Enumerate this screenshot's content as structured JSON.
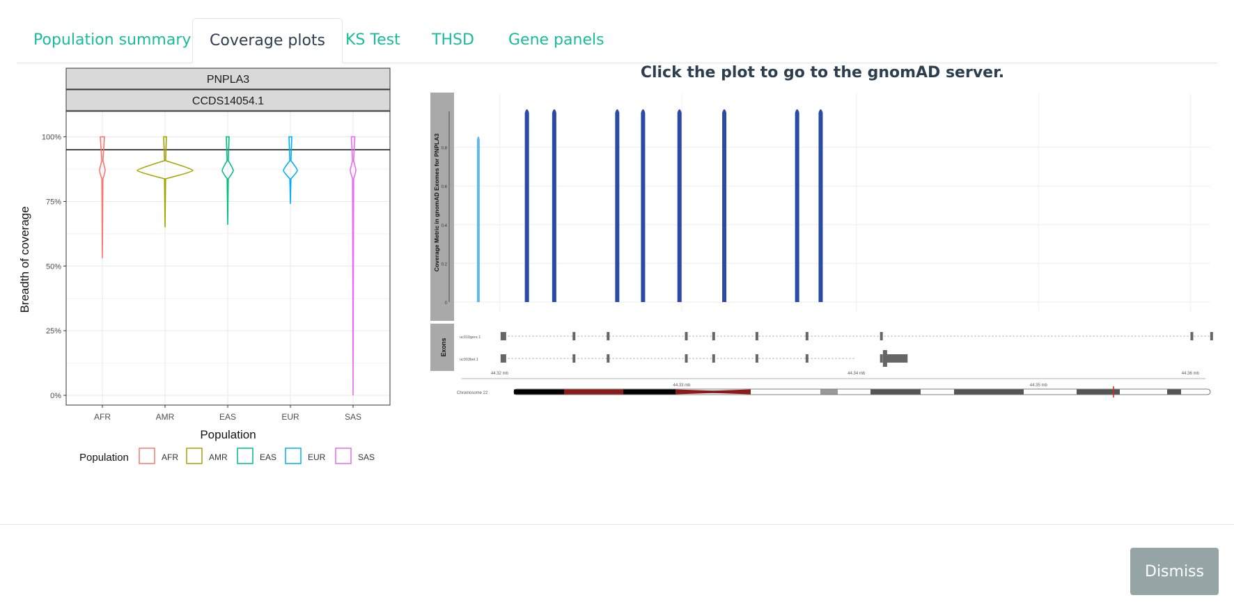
{
  "tabs": [
    {
      "label": "Population summary"
    },
    {
      "label": "Coverage plots"
    },
    {
      "label": "KS Test"
    },
    {
      "label": "THSD"
    },
    {
      "label": "Gene panels"
    }
  ],
  "active_tab": "Coverage plots",
  "right_title": "Click the plot to go to the gnomAD server.",
  "dismiss_label": "Dismiss",
  "chart_data": [
    {
      "type": "violin",
      "facet_labels": [
        "PNPLA3",
        "CCDS14054.1"
      ],
      "xlabel": "Population",
      "ylabel": "Breadth of coverage",
      "categories": [
        "AFR",
        "AMR",
        "EAS",
        "EUR",
        "SAS"
      ],
      "ytick_labels": [
        "0%",
        "25%",
        "50%",
        "75%",
        "100%"
      ],
      "ylim": [
        0,
        1.05
      ],
      "hline": 0.95,
      "grid": true,
      "legend": {
        "title": "Population",
        "position": "bottom",
        "entries": [
          "AFR",
          "AMR",
          "EAS",
          "EUR",
          "SAS"
        ]
      },
      "series_colors": {
        "AFR": "#F8766D",
        "AMR": "#A3A500",
        "EAS": "#00BF7D",
        "EUR": "#00B0F6",
        "SAS": "#E76BF3"
      },
      "distributions": [
        {
          "category": "AFR",
          "min": 0.53,
          "max": 1.0,
          "mode": 0.87
        },
        {
          "category": "AMR",
          "min": 0.65,
          "max": 1.0,
          "mode": 0.87
        },
        {
          "category": "EAS",
          "min": 0.66,
          "max": 1.0,
          "mode": 0.87
        },
        {
          "category": "EUR",
          "min": 0.74,
          "max": 1.0,
          "mode": 0.87
        },
        {
          "category": "SAS",
          "min": 0.0,
          "max": 1.0,
          "mode": 0.87
        }
      ]
    },
    {
      "type": "area",
      "ylabel": "Coverage Metric in gnomAD Exomes for PNPLA3",
      "yticks": [
        "0",
        "0.2",
        "0.4",
        "0.6",
        "0.8"
      ],
      "ylim": [
        0,
        1
      ],
      "track_label": "Exons",
      "transcripts": [
        "uc010gers.1",
        "uc003bei.1"
      ],
      "axis_labels": [
        "44.32 mb",
        "44.33 mb",
        "44.34 mb",
        "44.35 mb",
        "44.36 mb"
      ],
      "chromosome_label": "Chromosome 22",
      "color": "#2a4aa6",
      "peaks": [
        {
          "x": 0.032,
          "y": 0.86
        },
        {
          "x": 0.096,
          "y": 1.0
        },
        {
          "x": 0.132,
          "y": 1.0
        },
        {
          "x": 0.215,
          "y": 1.0
        },
        {
          "x": 0.249,
          "y": 1.0
        },
        {
          "x": 0.297,
          "y": 1.0
        },
        {
          "x": 0.356,
          "y": 1.0
        },
        {
          "x": 0.452,
          "y": 1.0
        },
        {
          "x": 0.483,
          "y": 1.0
        }
      ]
    }
  ]
}
